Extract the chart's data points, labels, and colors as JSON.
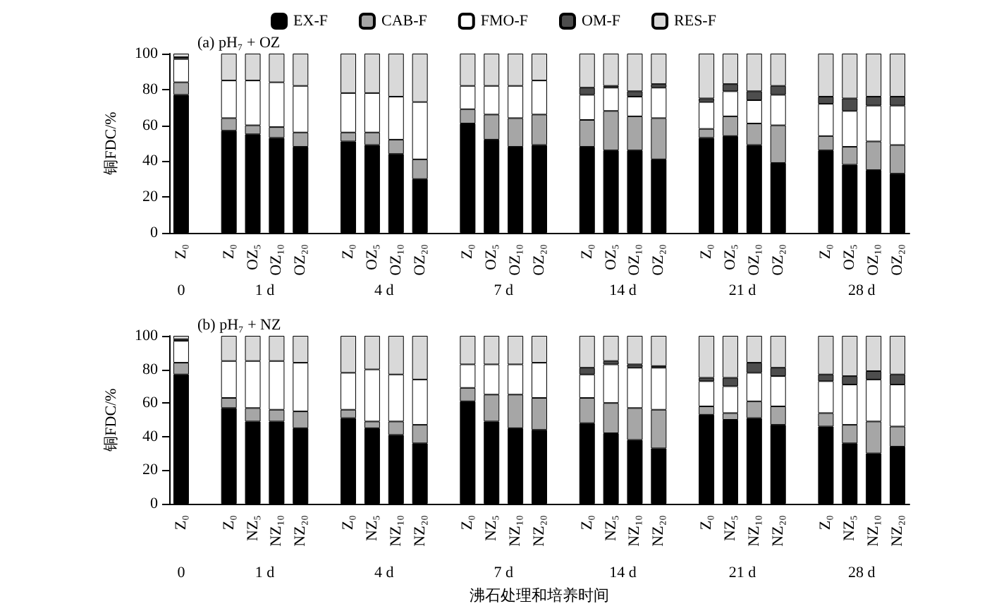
{
  "chart_data": [
    {
      "type": "bar",
      "title": "(a) pH₇ + OZ",
      "ylabel": "铜FDC/%",
      "stacked": true,
      "legend": "top",
      "grid": false,
      "categories": [
        "Z₀",
        null,
        "Z₀",
        "OZ₅",
        "OZ₁₀",
        "OZ₂₀",
        null,
        "Z₀",
        "OZ₅",
        "OZ₁₀",
        "OZ₂₀",
        null,
        "Z₀",
        "OZ₅",
        "OZ₁₀",
        "OZ₂₀",
        null,
        "Z₀",
        "OZ₅",
        "OZ₁₀",
        "OZ₂₀",
        null,
        "Z₀",
        "OZ₅",
        "OZ₁₀",
        "OZ₂₀",
        null,
        "Z₀",
        "OZ₅",
        "OZ₁₀",
        "OZ₂₀"
      ],
      "annotations": [
        "0",
        "1 d",
        "4 d",
        "7 d",
        "14 d",
        "21 d",
        "28 d"
      ],
      "ylim": [
        0,
        100
      ],
      "yticks": [
        0,
        20,
        40,
        60,
        80,
        100
      ],
      "series": [
        {
          "name": "EX-F",
          "color": "#000000",
          "values": [
            77,
            null,
            57,
            55,
            53,
            48,
            null,
            51,
            49,
            44,
            30,
            null,
            61,
            52,
            48,
            49,
            null,
            48,
            46,
            46,
            41,
            null,
            53,
            54,
            49,
            39,
            null,
            46,
            38,
            35,
            33
          ]
        },
        {
          "name": "CAB-F",
          "color": "#a6a6a6",
          "values": [
            7,
            null,
            7,
            5,
            6,
            8,
            null,
            5,
            7,
            8,
            11,
            null,
            8,
            14,
            16,
            17,
            null,
            15,
            22,
            19,
            23,
            null,
            5,
            11,
            12,
            21,
            null,
            8,
            10,
            16,
            16
          ]
        },
        {
          "name": "FMO-F",
          "color": "#ffffff",
          "values": [
            13,
            null,
            21,
            25,
            25,
            26,
            null,
            22,
            22,
            24,
            32,
            null,
            13,
            16,
            18,
            19,
            null,
            14,
            13,
            11,
            17,
            null,
            15,
            14,
            13,
            17,
            null,
            18,
            20,
            20,
            22
          ]
        },
        {
          "name": "OM-F",
          "color": "#4d4d4d",
          "values": [
            1,
            null,
            null,
            null,
            null,
            null,
            null,
            null,
            null,
            null,
            null,
            null,
            null,
            null,
            null,
            null,
            null,
            4,
            1,
            3,
            2,
            null,
            2,
            4,
            5,
            5,
            null,
            4,
            7,
            5,
            5
          ]
        },
        {
          "name": "RES-F",
          "color": "#d9d9d9",
          "values": [
            2,
            null,
            15,
            15,
            16,
            18,
            null,
            22,
            22,
            24,
            27,
            null,
            18,
            18,
            18,
            15,
            null,
            19,
            18,
            21,
            17,
            null,
            25,
            17,
            21,
            18,
            null,
            24,
            25,
            24,
            24
          ]
        }
      ]
    },
    {
      "type": "bar",
      "title": "(b) pH₇ + NZ",
      "ylabel": "铜FDC/%",
      "xlabel": "沸石处理和培养时间",
      "stacked": true,
      "grid": false,
      "categories": [
        "Z₀",
        null,
        "Z₀",
        "NZ₅",
        "NZ₁₀",
        "NZ₂₀",
        null,
        "Z₀",
        "NZ₅",
        "NZ₁₀",
        "NZ₂₀",
        null,
        "Z₀",
        "NZ₅",
        "NZ₁₀",
        "NZ₂₀",
        null,
        "Z₀",
        "NZ₅",
        "NZ₁₀",
        "NZ₂₀",
        null,
        "Z₀",
        "NZ₅",
        "NZ₁₀",
        "NZ₂₀",
        null,
        "Z₀",
        "NZ₅",
        "NZ₁₀",
        "NZ₂₀"
      ],
      "annotations": [
        "0",
        "1 d",
        "4 d",
        "7 d",
        "14 d",
        "21 d",
        "28 d"
      ],
      "ylim": [
        0,
        100
      ],
      "yticks": [
        0,
        20,
        40,
        60,
        80,
        100
      ],
      "series": [
        {
          "color": "#000000",
          "values": [
            77,
            null,
            57,
            49,
            49,
            45,
            null,
            51,
            45,
            41,
            36,
            null,
            61,
            49,
            45,
            44,
            null,
            48,
            42,
            38,
            33,
            null,
            53,
            50,
            51,
            47,
            null,
            46,
            36,
            30,
            34
          ]
        },
        {
          "color": "#a6a6a6",
          "values": [
            7,
            null,
            6,
            8,
            7,
            10,
            null,
            5,
            4,
            8,
            11,
            null,
            8,
            16,
            20,
            19,
            null,
            15,
            18,
            19,
            23,
            null,
            5,
            4,
            10,
            11,
            null,
            8,
            11,
            19,
            12
          ]
        },
        {
          "color": "#ffffff",
          "values": [
            13,
            null,
            22,
            28,
            29,
            29,
            null,
            22,
            31,
            28,
            27,
            null,
            14,
            18,
            18,
            21,
            null,
            14,
            23,
            24,
            25,
            null,
            15,
            16,
            17,
            18,
            null,
            19,
            24,
            25,
            25
          ]
        },
        {
          "color": "#4d4d4d",
          "values": [
            1,
            null,
            null,
            null,
            null,
            null,
            null,
            null,
            null,
            null,
            null,
            null,
            null,
            null,
            null,
            null,
            null,
            4,
            2,
            2,
            1,
            null,
            2,
            5,
            6,
            5,
            null,
            4,
            5,
            5,
            6
          ]
        },
        {
          "color": "#d9d9d9",
          "values": [
            2,
            null,
            15,
            15,
            15,
            16,
            null,
            22,
            20,
            23,
            26,
            null,
            17,
            17,
            17,
            16,
            null,
            19,
            15,
            17,
            18,
            null,
            25,
            25,
            16,
            19,
            null,
            23,
            24,
            21,
            23
          ]
        }
      ]
    }
  ]
}
